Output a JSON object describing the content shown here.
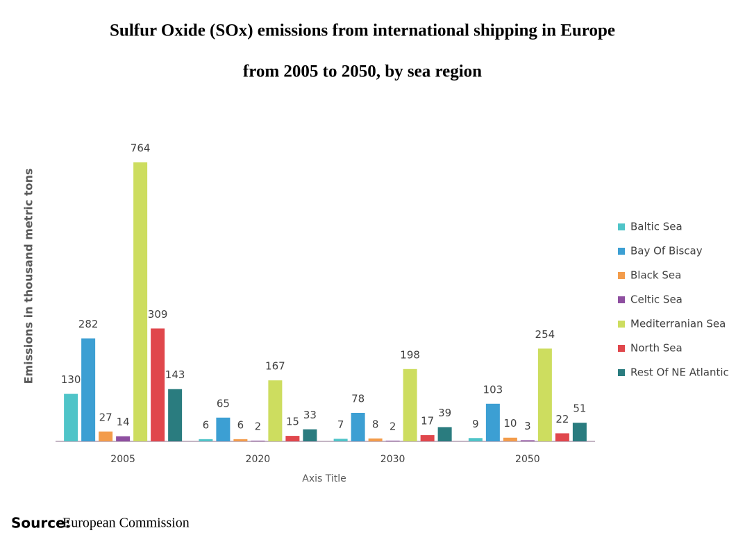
{
  "chart_data": {
    "type": "bar",
    "title": [
      "Sulfur Oxide (SOx) emissions from international shipping in Europe",
      "from 2005 to 2050, by sea region"
    ],
    "x_label": "Axis Title",
    "y_label": "Emissions in thousand metric tons",
    "categories": [
      "2005",
      "2020",
      "2030",
      "2050"
    ],
    "series": [
      {
        "name": "Baltic Sea",
        "color": "#4fc4c8",
        "values": [
          130,
          6,
          7,
          9
        ]
      },
      {
        "name": "Bay Of Biscay",
        "color": "#3c9fd3",
        "values": [
          282,
          65,
          78,
          103
        ]
      },
      {
        "name": "Black Sea",
        "color": "#f39c4b",
        "values": [
          27,
          6,
          8,
          10
        ]
      },
      {
        "name": "Celtic Sea",
        "color": "#8e4fa0",
        "values": [
          14,
          2,
          2,
          3
        ]
      },
      {
        "name": "Mediterranian Sea",
        "color": "#cddd5f",
        "values": [
          764,
          167,
          198,
          254
        ]
      },
      {
        "name": "North Sea",
        "color": "#e0474c",
        "values": [
          309,
          15,
          17,
          22
        ]
      },
      {
        "name": "Rest Of NE Atlantic",
        "color": "#2a7c7f",
        "values": [
          143,
          33,
          39,
          51
        ]
      }
    ],
    "ylim": [
      0,
      800
    ],
    "legend": "right",
    "source_label": "Source:",
    "source": "European Commission"
  }
}
